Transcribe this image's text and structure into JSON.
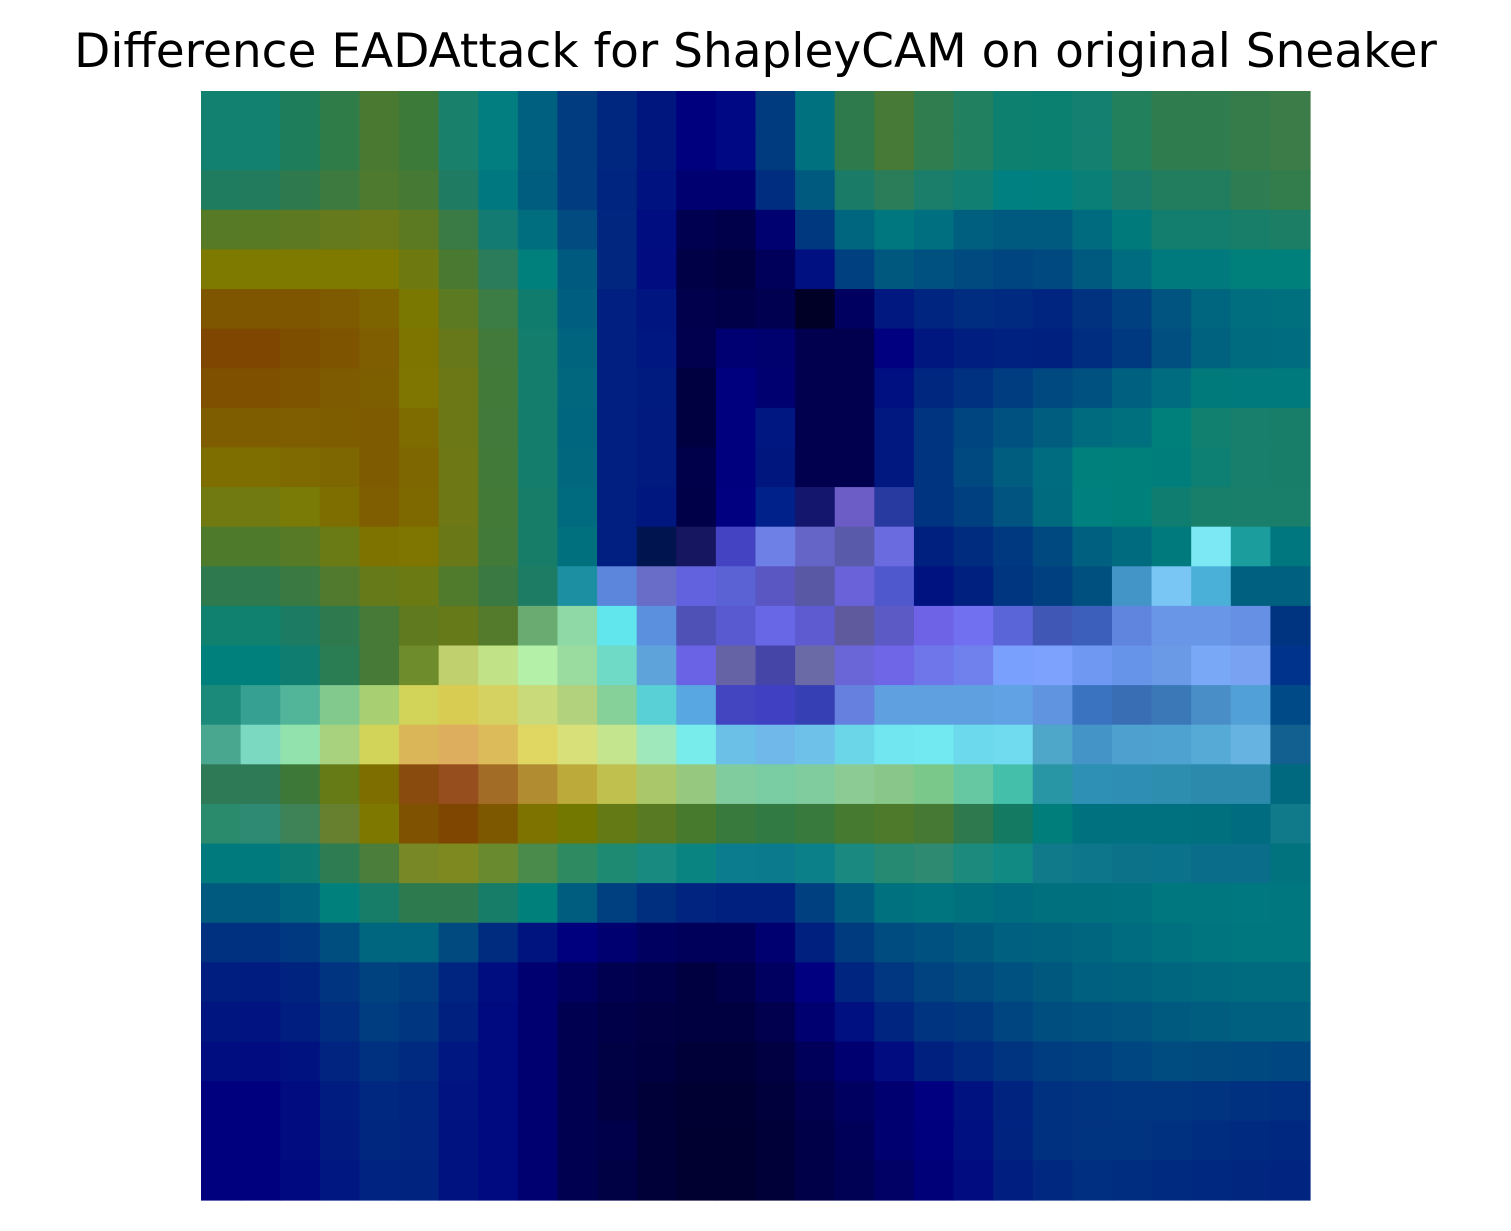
{
  "chart_data": {
    "type": "heatmap",
    "title": "Difference EADAttack for ShapleyCAM on original Sneaker",
    "grid": false,
    "axes_visible": false,
    "rows": 28,
    "cols": 28,
    "colors": [
      [
        "#138170",
        "#138170",
        "#1e7d5a",
        "#2f7c48",
        "#4a7a32",
        "#3c7a3a",
        "#19806b",
        "#027d80",
        "#00607f",
        "#013b80",
        "#002780",
        "#00167f",
        "#00007f",
        "#000983",
        "#003b80",
        "#00717f",
        "#2e7a4c",
        "#467a36",
        "#307d4f",
        "#21805f",
        "#0d8070",
        "#0c8070",
        "#138070",
        "#22805c",
        "#2f7d4e",
        "#2f7d4e",
        "#367c4a",
        "#3c7c48"
      ],
      [
        "#138170",
        "#138170",
        "#1e7d5a",
        "#2f7c48",
        "#4a7a32",
        "#3c7a3a",
        "#19806b",
        "#027d80",
        "#00607f",
        "#013b80",
        "#002780",
        "#00167f",
        "#00007f",
        "#000983",
        "#003b80",
        "#00717f",
        "#2e7a4c",
        "#467a36",
        "#307d4f",
        "#21805f",
        "#0d8070",
        "#0c8070",
        "#138070",
        "#22805c",
        "#2f7d4e",
        "#2f7d4e",
        "#367c4a",
        "#3c7c48"
      ],
      [
        "#207c5f",
        "#227b5c",
        "#2e7a4e",
        "#3c7a40",
        "#4e7a30",
        "#467a34",
        "#1f7c63",
        "#00787f",
        "#005d80",
        "#013b80",
        "#002580",
        "#001180",
        "#000070",
        "#000071",
        "#002d7f",
        "#005a80",
        "#1a7c66",
        "#2a7d58",
        "#1a7e6a",
        "#127f73",
        "#008080",
        "#00807f",
        "#0a7f77",
        "#197c6a",
        "#227d5e",
        "#227d5e",
        "#2d7c52",
        "#337c4c"
      ],
      [
        "#577a26",
        "#587a24",
        "#5d7a22",
        "#647a1c",
        "#6a7a18",
        "#5c7a22",
        "#3a7a44",
        "#137b72",
        "#006e7f",
        "#014b80",
        "#002680",
        "#000d80",
        "#000050",
        "#00004a",
        "#000170",
        "#003880",
        "#00667f",
        "#00767f",
        "#006f80",
        "#005f7f",
        "#005a80",
        "#005a80",
        "#006a7f",
        "#007a7a",
        "#137e6d",
        "#137e6d",
        "#197e69",
        "#1d7e66"
      ],
      [
        "#7e7a00",
        "#7e7a00",
        "#7e7a00",
        "#7e7a00",
        "#7e7a00",
        "#6e7a10",
        "#4a7a32",
        "#2a7c5a",
        "#00807c",
        "#005a80",
        "#002680",
        "#000c80",
        "#000047",
        "#000040",
        "#00005a",
        "#001080",
        "#004080",
        "#00587f",
        "#005080",
        "#004a80",
        "#004480",
        "#004880",
        "#005a80",
        "#006c7f",
        "#007a7d",
        "#007a7d",
        "#00807b",
        "#00807a"
      ],
      [
        "#7e5600",
        "#7e5600",
        "#7e5600",
        "#7e5a00",
        "#7e6400",
        "#7a7800",
        "#5c7a22",
        "#3c7c45",
        "#0f7c6e",
        "#005e80",
        "#001f80",
        "#001580",
        "#00004d",
        "#000048",
        "#000050",
        "#000026",
        "#000060",
        "#001880",
        "#002580",
        "#002d80",
        "#002980",
        "#002580",
        "#003280",
        "#004080",
        "#00547f",
        "#00667f",
        "#006e7f",
        "#00707f"
      ],
      [
        "#7e4600",
        "#7e4600",
        "#7e4e00",
        "#7e5400",
        "#7e5e00",
        "#7e7400",
        "#66781a",
        "#417a3a",
        "#147d6c",
        "#00647f",
        "#001f80",
        "#001680",
        "#00004e",
        "#000073",
        "#00006f",
        "#00004f",
        "#00004f",
        "#000080",
        "#001780",
        "#001d80",
        "#002180",
        "#002080",
        "#002d80",
        "#003980",
        "#004f80",
        "#00627f",
        "#006a7f",
        "#006c80"
      ],
      [
        "#7e5000",
        "#7e5000",
        "#7e5400",
        "#7e5a00",
        "#7e5f00",
        "#7e7600",
        "#6c7816",
        "#427a3a",
        "#147d6c",
        "#00677f",
        "#001f80",
        "#001b80",
        "#000040",
        "#00007f",
        "#000070",
        "#00004f",
        "#00004f",
        "#001080",
        "#002780",
        "#003080",
        "#003c80",
        "#004880",
        "#005080",
        "#00607f",
        "#006c7f",
        "#007a7b",
        "#007a7c",
        "#007a7d"
      ],
      [
        "#7e5c00",
        "#7e5c00",
        "#7e5e00",
        "#7e5c00",
        "#7e5a00",
        "#7e6c00",
        "#6c7816",
        "#417a3a",
        "#147d6c",
        "#00657f",
        "#001f80",
        "#001a80",
        "#000040",
        "#00007f",
        "#001680",
        "#00004f",
        "#00004f",
        "#001880",
        "#003380",
        "#004480",
        "#005080",
        "#005d80",
        "#006a7f",
        "#00707f",
        "#00807a",
        "#11806f",
        "#177f6b",
        "#187e6a"
      ],
      [
        "#7e6e00",
        "#7e6e00",
        "#7e6a00",
        "#7e6600",
        "#7e5a00",
        "#7e6600",
        "#6e7814",
        "#427a3a",
        "#157d6b",
        "#00677f",
        "#001f80",
        "#001a80",
        "#00004a",
        "#00007f",
        "#00167f",
        "#00004f",
        "#00004f",
        "#001880",
        "#003380",
        "#004880",
        "#005d80",
        "#006c7f",
        "#00807d",
        "#00807b",
        "#007e7b",
        "#0e7f73",
        "#177f6b",
        "#187e6a"
      ],
      [
        "#717a10",
        "#717a10",
        "#7a7a06",
        "#7e6e00",
        "#7e5e00",
        "#7e6800",
        "#6e7814",
        "#447a38",
        "#187d68",
        "#006a7f",
        "#001f80",
        "#001780",
        "#000049",
        "#000080",
        "#00208a",
        "#14166e",
        "#6b5dc5",
        "#283a9f",
        "#003380",
        "#004080",
        "#00547f",
        "#006a7f",
        "#00807f",
        "#00807a",
        "#0f7e70",
        "#187f6b",
        "#197e6a",
        "#197e6a"
      ],
      [
        "#4e7a2c",
        "#4e7a2c",
        "#567a26",
        "#6a7a14",
        "#7e7200",
        "#7e7600",
        "#6a7818",
        "#427a3a",
        "#187d68",
        "#00707f",
        "#001f80",
        "#001550",
        "#161560",
        "#4444c3",
        "#6e80e5",
        "#6565c8",
        "#5a5aab",
        "#6b6be0",
        "#002080",
        "#002c80",
        "#003980",
        "#004880",
        "#00607f",
        "#006a7f",
        "#007a7d",
        "#7be8f3",
        "#1b9c9d",
        "#00767e"
      ],
      [
        "#2e7a4e",
        "#2e7a4e",
        "#3a7a42",
        "#527a2e",
        "#667a1a",
        "#6c7a14",
        "#507a2c",
        "#3a7a42",
        "#1c7d64",
        "#1c8fa2",
        "#5b86db",
        "#6a6dc8",
        "#6262de",
        "#5a62d4",
        "#5a57c3",
        "#5858a5",
        "#6a62d8",
        "#4f58cc",
        "#001280",
        "#002080",
        "#003580",
        "#004080",
        "#00507f",
        "#4394c7",
        "#79c5f4",
        "#4bb0d8",
        "#00607f",
        "#00607f"
      ],
      [
        "#10806f",
        "#10806f",
        "#1b7c63",
        "#2e7a4e",
        "#467a36",
        "#607a20",
        "#667a1a",
        "#547a2c",
        "#6aab72",
        "#8fd9a6",
        "#60e6ec",
        "#5a90dd",
        "#4f51b6",
        "#5a5ad0",
        "#6868e6",
        "#5e5ad0",
        "#5f5a9e",
        "#5c5ac4",
        "#6e63e6",
        "#7070f0",
        "#5a66d8",
        "#4057b5",
        "#3c5fbb",
        "#5f85df",
        "#6a96e8",
        "#6a96e8",
        "#6690e4",
        "#003480"
      ],
      [
        "#00807d",
        "#00807d",
        "#0f7e70",
        "#2a7c52",
        "#467a36",
        "#6e8c2c",
        "#c0d06e",
        "#c2e288",
        "#b4f0a8",
        "#9adba0",
        "#6fdac6",
        "#5ea4da",
        "#6b63e6",
        "#6563a5",
        "#4545a8",
        "#6a6aa6",
        "#6a66d8",
        "#6e66e6",
        "#6e76ea",
        "#7080ec",
        "#7aa0fe",
        "#7ca2fe",
        "#6e98f2",
        "#6694e8",
        "#6a9ae6",
        "#78a8f6",
        "#7aa2f2",
        "#00338c"
      ],
      [
        "#1c8a7a",
        "#36a093",
        "#52b599",
        "#82c98e",
        "#a8cf72",
        "#d2d45a",
        "#d8cc52",
        "#d6d262",
        "#c8da7a",
        "#b2d27e",
        "#86d09a",
        "#58d0d6",
        "#58a6e2",
        "#4244c0",
        "#4040c2",
        "#3640b4",
        "#6680e0",
        "#5ea0e0",
        "#5ea0e0",
        "#5ea0e0",
        "#60a2e4",
        "#6094e0",
        "#3a74c0",
        "#3a6eb4",
        "#3a78b8",
        "#4a8ec8",
        "#52a0d8",
        "#004a88"
      ],
      [
        "#4aa78f",
        "#7ad9c0",
        "#92e2ae",
        "#a8d27e",
        "#d2d45a",
        "#dab658",
        "#dcae5e",
        "#dcbc5a",
        "#e0d662",
        "#d8e07a",
        "#c4e48e",
        "#9ee8bc",
        "#78ecea",
        "#6ac0e6",
        "#70b8ea",
        "#6ec2ea",
        "#6cd6e9",
        "#72e6f0",
        "#72e8f0",
        "#6cdaec",
        "#70daee",
        "#4ea6c8",
        "#4494c8",
        "#4ea0cf",
        "#4ea2d0",
        "#55aad6",
        "#66b2e0",
        "#11608f"
      ],
      [
        "#2e7a57",
        "#2e7a57",
        "#3e7838",
        "#667a16",
        "#7e6e00",
        "#8a4c0e",
        "#964e1e",
        "#a26c26",
        "#b28c30",
        "#bcaa3a",
        "#c0c04e",
        "#aac86a",
        "#96c880",
        "#80cc9e",
        "#7acca2",
        "#80cc9e",
        "#8ccc94",
        "#88c68a",
        "#7ac88a",
        "#66c8a2",
        "#44bfaa",
        "#2896a4",
        "#2e90b4",
        "#2e8eb4",
        "#2e8eb0",
        "#2c8aac",
        "#2c8aac",
        "#00697f"
      ],
      [
        "#2a8a6c",
        "#2e8a72",
        "#3e8258",
        "#668030",
        "#7e7800",
        "#7e5200",
        "#7e4600",
        "#7e5800",
        "#7e7200",
        "#727800",
        "#647a14",
        "#587a22",
        "#487a2e",
        "#387a3e",
        "#327a44",
        "#387a3e",
        "#467a30",
        "#4e7a2c",
        "#467a34",
        "#2e7a4e",
        "#147a62",
        "#007e7b",
        "#00727f",
        "#00727f",
        "#00727f",
        "#00707f",
        "#006c7f",
        "#117a8a"
      ],
      [
        "#007a7c",
        "#007a7c",
        "#0c7c72",
        "#2e7c52",
        "#4a7e3a",
        "#788826",
        "#7e8a20",
        "#6a8a30",
        "#4a8a4a",
        "#2e8a60",
        "#1e8a72",
        "#188a80",
        "#0a8480",
        "#0a7c8e",
        "#0a7a8c",
        "#0c8088",
        "#1a8a80",
        "#268a72",
        "#2e8a70",
        "#1c8a7c",
        "#118a84",
        "#117a8a",
        "#0e768a",
        "#0c728a",
        "#0a728a",
        "#0a6e8a",
        "#0a6e8a",
        "#00737f"
      ],
      [
        "#005a80",
        "#005a80",
        "#00647f",
        "#00807c",
        "#177c68",
        "#2e7a4f",
        "#2e7a4e",
        "#177c68",
        "#00807b",
        "#005d80",
        "#004080",
        "#002f80",
        "#002480",
        "#002080",
        "#002080",
        "#003f80",
        "#005b80",
        "#00727f",
        "#00747f",
        "#00707f",
        "#006c7f",
        "#00707f",
        "#00707f",
        "#00727f",
        "#00767f",
        "#00767f",
        "#00787f",
        "#00767f"
      ],
      [
        "#003080",
        "#003080",
        "#003980",
        "#004d80",
        "#00667f",
        "#00667f",
        "#004a80",
        "#002c80",
        "#001480",
        "#00007f",
        "#000070",
        "#000060",
        "#00005a",
        "#00005a",
        "#000070",
        "#002080",
        "#003b80",
        "#004c80",
        "#005180",
        "#00587f",
        "#00607f",
        "#00627f",
        "#00667f",
        "#006c7f",
        "#00727f",
        "#00747f",
        "#00767f",
        "#00767f"
      ],
      [
        "#001d80",
        "#001c80",
        "#002380",
        "#003380",
        "#004280",
        "#003c80",
        "#002580",
        "#000d80",
        "#000070",
        "#000060",
        "#000050",
        "#00004a",
        "#000040",
        "#00004a",
        "#000060",
        "#000080",
        "#002580",
        "#003780",
        "#004380",
        "#004a80",
        "#005080",
        "#00587f",
        "#00607f",
        "#00627f",
        "#00667f",
        "#00687f",
        "#006a7f",
        "#006a7f"
      ],
      [
        "#001580",
        "#001380",
        "#001d80",
        "#002d80",
        "#003c80",
        "#003680",
        "#002080",
        "#000a80",
        "#000070",
        "#000050",
        "#000048",
        "#000043",
        "#000040",
        "#000040",
        "#00004f",
        "#000070",
        "#001080",
        "#002580",
        "#003380",
        "#003880",
        "#004480",
        "#004d80",
        "#005180",
        "#00547f",
        "#005a80",
        "#005d80",
        "#00607f",
        "#00607f"
      ],
      [
        "#000d80",
        "#000c80",
        "#001280",
        "#002480",
        "#003080",
        "#002a80",
        "#001680",
        "#000a80",
        "#000070",
        "#000050",
        "#000045",
        "#000040",
        "#000038",
        "#000038",
        "#000043",
        "#00005a",
        "#000070",
        "#000c80",
        "#002080",
        "#002a80",
        "#003380",
        "#003c80",
        "#004080",
        "#004680",
        "#004c80",
        "#004a80",
        "#004880",
        "#004680"
      ],
      [
        "#00007f",
        "#00007f",
        "#000c80",
        "#001c80",
        "#002880",
        "#002580",
        "#001380",
        "#000a80",
        "#000070",
        "#000050",
        "#000043",
        "#000038",
        "#000032",
        "#000032",
        "#00003d",
        "#00004f",
        "#000060",
        "#000070",
        "#000080",
        "#001280",
        "#002380",
        "#003080",
        "#003380",
        "#003580",
        "#003580",
        "#003380",
        "#003080",
        "#002e80"
      ],
      [
        "#00007f",
        "#00007f",
        "#000c80",
        "#001a80",
        "#002780",
        "#002480",
        "#001280",
        "#000a80",
        "#000070",
        "#000050",
        "#00004a",
        "#000038",
        "#000030",
        "#000030",
        "#000038",
        "#000048",
        "#000058",
        "#000070",
        "#00007f",
        "#001080",
        "#002380",
        "#003080",
        "#003380",
        "#003380",
        "#003080",
        "#002d80",
        "#002a80",
        "#002880"
      ],
      [
        "#00007f",
        "#00007f",
        "#000980",
        "#001680",
        "#002280",
        "#002380",
        "#001280",
        "#000a80",
        "#000070",
        "#000050",
        "#000045",
        "#000038",
        "#000030",
        "#000030",
        "#000038",
        "#000048",
        "#000055",
        "#000065",
        "#000078",
        "#000c80",
        "#001e80",
        "#002880",
        "#002e80",
        "#002d80",
        "#002a80",
        "#002880",
        "#002680",
        "#002480"
      ]
    ]
  }
}
